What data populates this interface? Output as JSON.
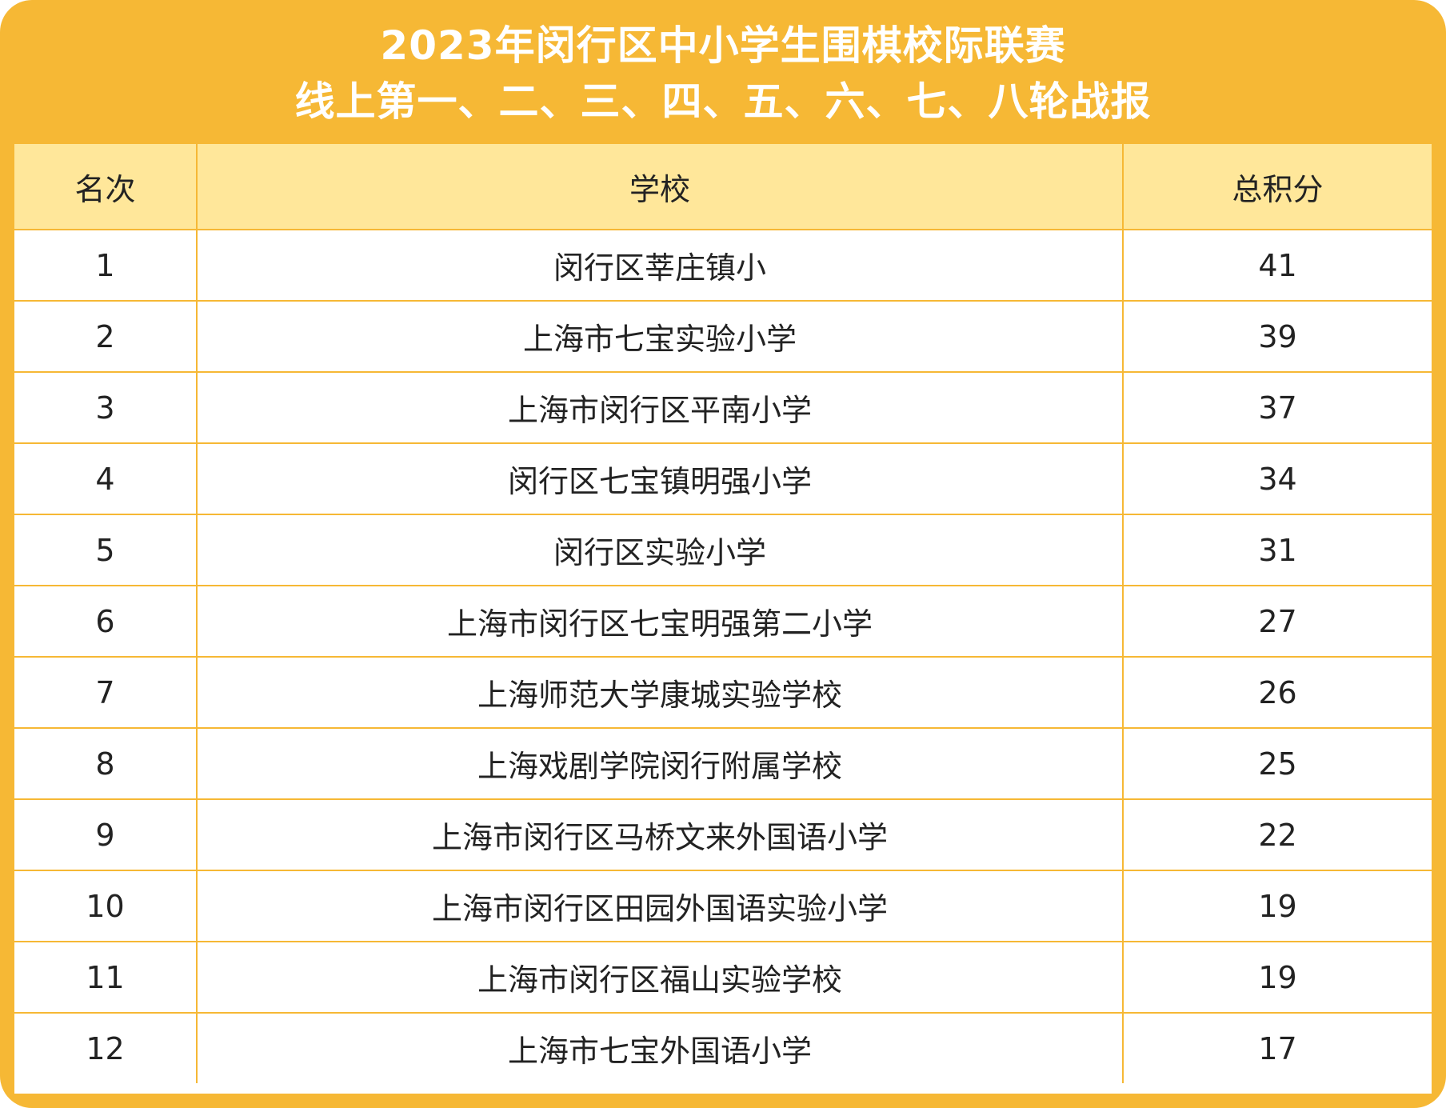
{
  "title": {
    "line1": "2023年闵行区中小学生围棋校际联赛",
    "line2": "线上第一、二、三、四、五、六、七、八轮战报"
  },
  "colors": {
    "frame": "#F6B835",
    "header_bg": "#FFE79A",
    "title_text": "#FFFFFF"
  },
  "table": {
    "headers": {
      "rank": "名次",
      "school": "学校",
      "score": "总积分"
    },
    "rows": [
      {
        "rank": "1",
        "school": "闵行区莘庄镇小",
        "score": "41"
      },
      {
        "rank": "2",
        "school": "上海市七宝实验小学",
        "score": "39"
      },
      {
        "rank": "3",
        "school": "上海市闵行区平南小学",
        "score": "37"
      },
      {
        "rank": "4",
        "school": "闵行区七宝镇明强小学",
        "score": "34"
      },
      {
        "rank": "5",
        "school": "闵行区实验小学",
        "score": "31"
      },
      {
        "rank": "6",
        "school": "上海市闵行区七宝明强第二小学",
        "score": "27"
      },
      {
        "rank": "7",
        "school": "上海师范大学康城实验学校",
        "score": "26"
      },
      {
        "rank": "8",
        "school": "上海戏剧学院闵行附属学校",
        "score": "25"
      },
      {
        "rank": "9",
        "school": "上海市闵行区马桥文来外国语小学",
        "score": "22"
      },
      {
        "rank": "10",
        "school": "上海市闵行区田园外国语实验小学",
        "score": "19"
      },
      {
        "rank": "11",
        "school": "上海市闵行区福山实验学校",
        "score": "19"
      },
      {
        "rank": "12",
        "school": "上海市七宝外国语小学",
        "score": "17"
      }
    ]
  }
}
